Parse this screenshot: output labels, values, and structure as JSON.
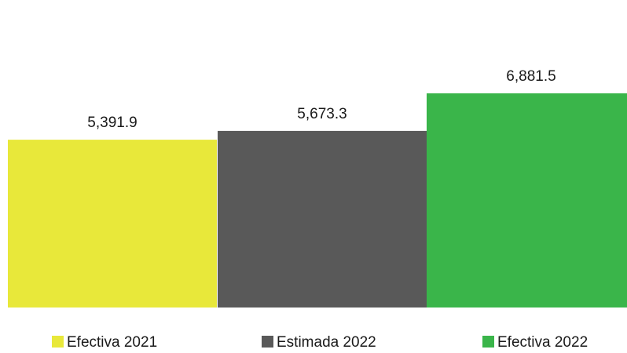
{
  "chart_data": {
    "type": "bar",
    "categories": [
      "Efectiva 2021",
      "Estimada 2022",
      "Efectiva 2022"
    ],
    "values": [
      5391.9,
      5673.3,
      6881.5
    ],
    "value_labels": [
      "5,391.9",
      "5,673.3",
      "6,881.5"
    ],
    "colors": [
      "#e8e83a",
      "#595959",
      "#3ab54a"
    ],
    "title": "",
    "xlabel": "",
    "ylabel": "",
    "ylim": [
      0,
      8400
    ],
    "grid": false,
    "axes_visible": false,
    "legend": {
      "position": "bottom",
      "entries": [
        "Efectiva 2021",
        "Estimada 2022",
        "Efectiva 2022"
      ]
    }
  }
}
